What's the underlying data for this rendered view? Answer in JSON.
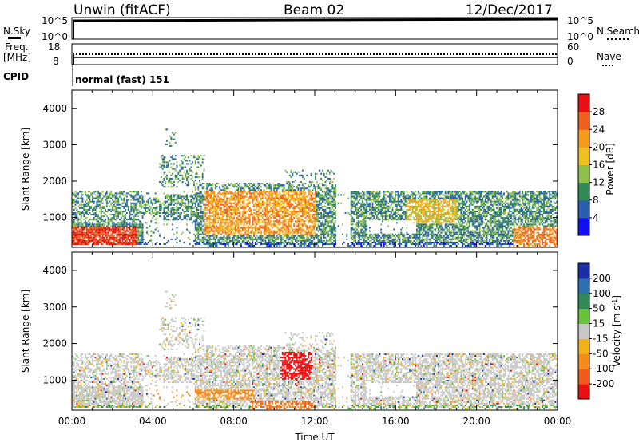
{
  "header": {
    "station": "Unwin (fitACF)",
    "beam": "Beam 02",
    "date": "12/Dec/2017"
  },
  "panels": {
    "sky": {
      "left_label": "N.Sky",
      "right_label": "N.Search",
      "left_top": "10^5",
      "left_bottom": "10^0",
      "right_top": "10^5",
      "right_bottom": "10^0"
    },
    "freq": {
      "left_label_1": "Freq.",
      "left_label_2": "[MHz]",
      "left_top": "18",
      "left_bottom": "8",
      "right_label": "Nave",
      "right_top": "60",
      "right_bottom": "0"
    },
    "cpid": {
      "label": "CPID",
      "value": "normal (fast) 151"
    }
  },
  "chart_data": [
    {
      "type": "heatmap",
      "title": "",
      "ylabel": "Slant Range [km]",
      "xlabel": "",
      "xlim": [
        0,
        24
      ],
      "ylim": [
        180,
        4500
      ],
      "yticks": [
        1000,
        2000,
        3000,
        4000
      ],
      "colorbar": {
        "label": "Power [dB]",
        "ticks": [
          "4",
          "8",
          "12",
          "16",
          "20",
          "24",
          "28"
        ],
        "colors": [
          "#1010f0",
          "#2a5fb0",
          "#2f8a55",
          "#8fc04a",
          "#f0c020",
          "#f59a1a",
          "#f0601a",
          "#e81010"
        ]
      },
      "regions_utc_hours": [
        {
          "t0": 0.0,
          "t1": 3.6,
          "r0": 200,
          "r1": 1700,
          "level": "mixed"
        },
        {
          "t0": 6.0,
          "t1": 13.0,
          "r0": 300,
          "r1": 1900,
          "level": "high"
        },
        {
          "t0": 13.7,
          "t1": 24.0,
          "r0": 250,
          "r1": 1800,
          "level": "mixed"
        }
      ]
    },
    {
      "type": "heatmap",
      "title": "",
      "ylabel": "Slant Range [km]",
      "xlabel": "Time UT",
      "xlim": [
        0,
        24
      ],
      "ylim": [
        180,
        4500
      ],
      "yticks": [
        1000,
        2000,
        3000,
        4000
      ],
      "xticks": [
        "00:00",
        "04:00",
        "08:00",
        "12:00",
        "16:00",
        "20:00",
        "00:00"
      ],
      "colorbar": {
        "label": "Velocity [m s^-1]",
        "ticks": [
          "200",
          "100",
          "50",
          "15",
          "-15",
          "-50",
          "-100",
          "-200"
        ],
        "colors": [
          "#1a2ea8",
          "#2a6fb0",
          "#2f8a55",
          "#66c23a",
          "#c8c8c8",
          "#f3b21a",
          "#f58c1a",
          "#f05a1a",
          "#e81010"
        ]
      }
    }
  ]
}
